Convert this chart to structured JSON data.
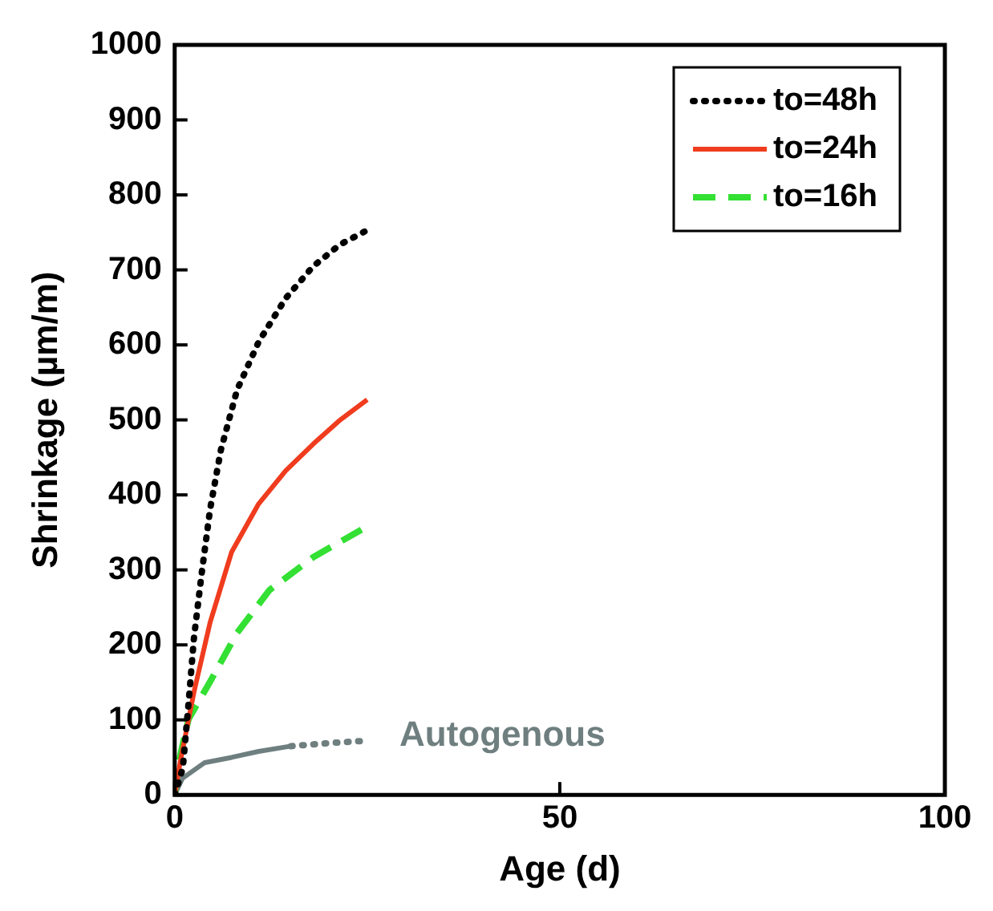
{
  "chart_data": {
    "type": "line",
    "xlabel": "Age (d)",
    "ylabel": "Shrinkage (µm/m)",
    "xlim": [
      0,
      100
    ],
    "xticks": [
      0,
      50,
      100
    ],
    "ylim": [
      0,
      1000
    ],
    "yticks": [
      0,
      100,
      200,
      300,
      400,
      500,
      600,
      700,
      800,
      900,
      1000
    ],
    "grid": false,
    "legend": "top right",
    "marker": "none",
    "series": [
      {
        "name": "to=48h",
        "color": "#000000",
        "line_style": "dotted",
        "x": [
          0,
          1.06,
          1.8,
          2.5,
          3.5,
          4.6,
          6,
          8.1,
          10.9,
          14.4,
          18,
          21.5,
          25
        ],
        "values": [
          0,
          36,
          122,
          209,
          295,
          381,
          460,
          540,
          604,
          662,
          705,
          734,
          753
        ]
      },
      {
        "name": "to=24h",
        "color": "#f03c1e",
        "line_style": "solid",
        "x": [
          0,
          0.7,
          2.5,
          4.6,
          7.4,
          10.9,
          14.4,
          18,
          21.5,
          25
        ],
        "values": [
          0,
          43,
          137,
          230,
          324,
          388,
          432,
          468,
          500,
          527
        ]
      },
      {
        "name": "to=16h",
        "color": "#33e033",
        "line_style": "dashed",
        "x": [
          0,
          0.35,
          1.8,
          4.6,
          8.1,
          12.3,
          18,
          25
        ],
        "values": [
          0,
          36,
          101,
          151,
          216,
          273,
          317,
          358
        ]
      },
      {
        "color": "#6f7f80",
        "line_style": "solid",
        "x": [
          0,
          1,
          3.9,
          7.4,
          10.9,
          15.1
        ],
        "values": [
          0,
          22,
          43,
          50,
          58,
          65
        ]
      },
      {
        "color": "#6f7f80",
        "line_style": "dotted",
        "x": [
          15.1,
          20,
          24.6
        ],
        "values": [
          65,
          69,
          72
        ]
      }
    ],
    "annotations": [
      {
        "text": "Autogenous",
        "x": 24.6,
        "y": 72
      }
    ]
  }
}
